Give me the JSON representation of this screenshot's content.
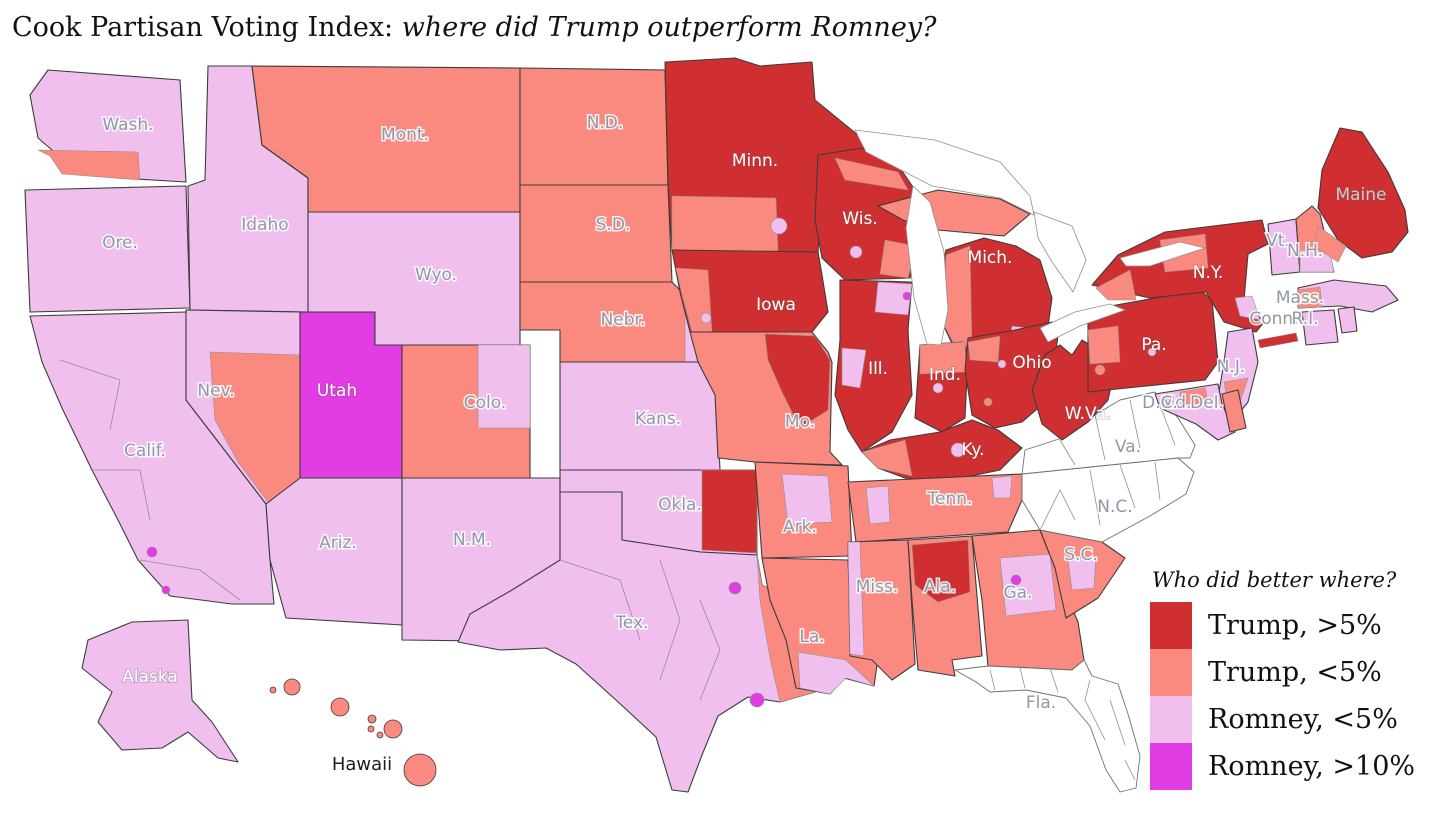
{
  "title": {
    "prefix": "Cook Partisan Voting Index: ",
    "emphasis": "where did Trump outperform Romney?"
  },
  "legend": {
    "title": "Who did better where?",
    "items": [
      {
        "key": "trump_gt5",
        "label": "Trump, >5%",
        "color": "#cf2f30"
      },
      {
        "key": "trump_lt5",
        "label": "Trump, <5%",
        "color": "#fa8a80"
      },
      {
        "key": "romney_lt5",
        "label": "Romney, <5%",
        "color": "#f0bfee"
      },
      {
        "key": "romney_gt10",
        "label": "Romney, >10%",
        "color": "#e23de2"
      }
    ]
  },
  "map": {
    "background": "#ffffff",
    "no_data_color": "#ffffff",
    "state_border_color": "#3c3c3c",
    "district_line_color": "#8f8f8f",
    "no_data_border_color": "#707070",
    "lake_color": "#ffffff",
    "label_colors": {
      "gray": "#8f99a6",
      "white": "#ffffff",
      "light": "#c8cdd6",
      "dark": "#1c1c1c"
    },
    "states": [
      {
        "id": "WA",
        "label": "Wash.",
        "category": "romney_lt5",
        "label_style": "gray"
      },
      {
        "id": "OR",
        "label": "Ore.",
        "category": "romney_lt5",
        "label_style": "gray"
      },
      {
        "id": "CA",
        "label": "Calif.",
        "category": "romney_lt5",
        "label_style": "gray"
      },
      {
        "id": "ID",
        "label": "Idaho",
        "category": "romney_lt5",
        "label_style": "gray"
      },
      {
        "id": "NV",
        "label": "Nev.",
        "category": "romney_lt5",
        "label_style": "gray"
      },
      {
        "id": "UT",
        "label": "Utah",
        "category": "romney_gt10",
        "label_style": "white"
      },
      {
        "id": "AZ",
        "label": "Ariz.",
        "category": "romney_lt5",
        "label_style": "gray"
      },
      {
        "id": "NM",
        "label": "N.M.",
        "category": "romney_lt5",
        "label_style": "gray"
      },
      {
        "id": "MT",
        "label": "Mont.",
        "category": "trump_lt5",
        "label_style": "gray"
      },
      {
        "id": "WY",
        "label": "Wyo.",
        "category": "romney_lt5",
        "label_style": "gray"
      },
      {
        "id": "CO",
        "label": "Colo.",
        "category": "trump_lt5",
        "label_style": "gray"
      },
      {
        "id": "ND",
        "label": "N.D.",
        "category": "trump_lt5",
        "label_style": "gray"
      },
      {
        "id": "SD",
        "label": "S.D.",
        "category": "trump_lt5",
        "label_style": "gray"
      },
      {
        "id": "NE",
        "label": "Nebr.",
        "category": "trump_lt5",
        "label_style": "gray"
      },
      {
        "id": "KS",
        "label": "Kans.",
        "category": "romney_lt5",
        "label_style": "gray"
      },
      {
        "id": "OK",
        "label": "Okla.",
        "category": "romney_lt5",
        "label_style": "gray"
      },
      {
        "id": "TX",
        "label": "Tex.",
        "category": "romney_lt5",
        "label_style": "gray"
      },
      {
        "id": "MN",
        "label": "Minn.",
        "category": "trump_gt5",
        "label_style": "white"
      },
      {
        "id": "IA",
        "label": "Iowa",
        "category": "trump_gt5",
        "label_style": "white"
      },
      {
        "id": "MO",
        "label": "Mo.",
        "category": "trump_lt5",
        "label_style": "gray"
      },
      {
        "id": "AR",
        "label": "Ark.",
        "category": "trump_lt5",
        "label_style": "gray"
      },
      {
        "id": "LA",
        "label": "La.",
        "category": "trump_lt5",
        "label_style": "gray"
      },
      {
        "id": "WI",
        "label": "Wis.",
        "category": "trump_gt5",
        "label_style": "white"
      },
      {
        "id": "IL",
        "label": "Ill.",
        "category": "trump_gt5",
        "label_style": "white"
      },
      {
        "id": "MI_UP",
        "label": "",
        "category": "trump_lt5",
        "label_style": "gray"
      },
      {
        "id": "MI",
        "label": "Mich.",
        "category": "trump_gt5",
        "label_style": "white"
      },
      {
        "id": "IN",
        "label": "Ind.",
        "category": "trump_gt5",
        "label_style": "white"
      },
      {
        "id": "OH",
        "label": "Ohio",
        "category": "trump_gt5",
        "label_style": "white"
      },
      {
        "id": "KY",
        "label": "Ky.",
        "category": "trump_gt5",
        "label_style": "white"
      },
      {
        "id": "TN",
        "label": "Tenn.",
        "category": "trump_lt5",
        "label_style": "gray"
      },
      {
        "id": "MS",
        "label": "Miss.",
        "category": "trump_lt5",
        "label_style": "gray"
      },
      {
        "id": "AL",
        "label": "Ala.",
        "category": "trump_lt5",
        "label_style": "gray"
      },
      {
        "id": "GA",
        "label": "Ga.",
        "category": "trump_lt5",
        "label_style": "gray"
      },
      {
        "id": "SC",
        "label": "S.C.",
        "category": "trump_lt5",
        "label_style": "gray"
      },
      {
        "id": "NC",
        "label": "N.C.",
        "category": "none",
        "label_style": "gray"
      },
      {
        "id": "VA",
        "label": "Va.",
        "category": "none",
        "label_style": "gray"
      },
      {
        "id": "WV",
        "label": "W.Va.",
        "category": "trump_gt5",
        "label_style": "white"
      },
      {
        "id": "FL",
        "label": "Fla.",
        "category": "none",
        "label_style": "gray"
      },
      {
        "id": "PA",
        "label": "Pa.",
        "category": "trump_gt5",
        "label_style": "white"
      },
      {
        "id": "NY",
        "label": "N.Y.",
        "category": "trump_gt5",
        "label_style": "white"
      },
      {
        "id": "NJ",
        "label": "N.J.",
        "category": "romney_lt5",
        "label_style": "gray"
      },
      {
        "id": "MD",
        "label": "Md.",
        "category": "romney_lt5",
        "label_style": "gray"
      },
      {
        "id": "DC",
        "label": "D.C.",
        "category": "romney_gt10",
        "label_style": "gray"
      },
      {
        "id": "DE",
        "label": "Del.",
        "category": "trump_lt5",
        "label_style": "gray"
      },
      {
        "id": "VT",
        "label": "Vt.",
        "category": "romney_lt5",
        "label_style": "gray"
      },
      {
        "id": "NH",
        "label": "N.H.",
        "category": "trump_lt5",
        "label_style": "gray"
      },
      {
        "id": "MA",
        "label": "Mass.",
        "category": "romney_lt5",
        "label_style": "gray"
      },
      {
        "id": "CT",
        "label": "Conn.",
        "category": "romney_lt5",
        "label_style": "gray"
      },
      {
        "id": "RI",
        "label": "R.I.",
        "category": "romney_lt5",
        "label_style": "gray"
      },
      {
        "id": "ME",
        "label": "Maine",
        "category": "trump_gt5",
        "label_style": "light"
      },
      {
        "id": "AK",
        "label": "Alaska",
        "category": "romney_lt5",
        "label_style": "white"
      },
      {
        "id": "HI",
        "label": "Hawaii",
        "category": "trump_lt5",
        "label_style": "dark"
      }
    ]
  }
}
